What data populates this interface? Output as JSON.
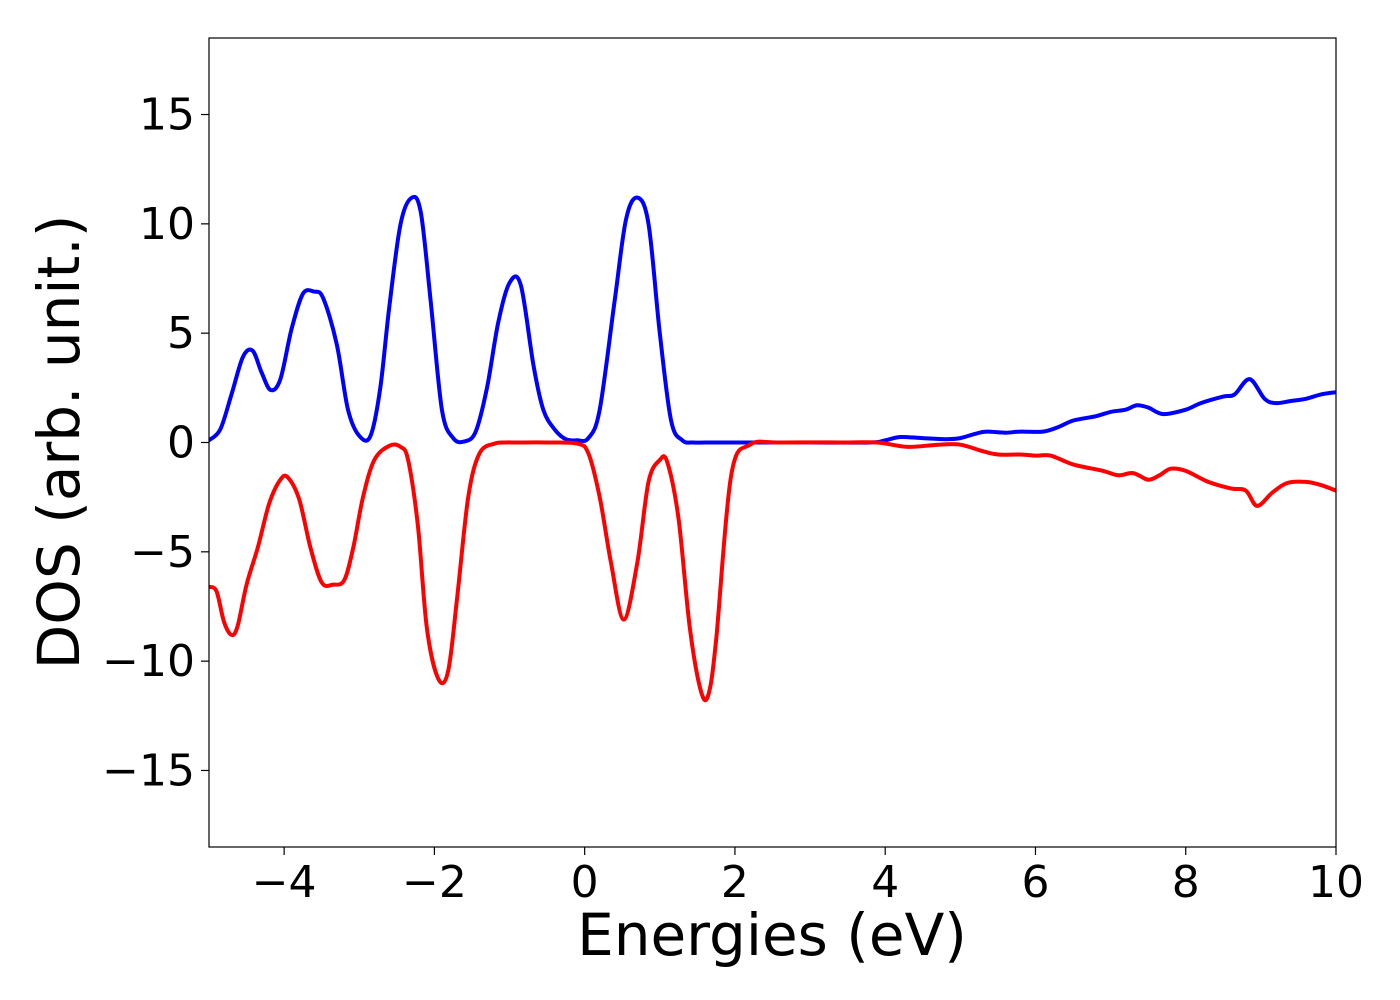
{
  "chart_data": {
    "type": "line",
    "title": "",
    "xlabel": "Energies (eV)",
    "ylabel": "DOS (arb. unit.)",
    "xlim": [
      -5,
      10
    ],
    "ylim": [
      -18.5,
      18.5
    ],
    "xticks": [
      -4,
      -2,
      0,
      2,
      4,
      6,
      8,
      10
    ],
    "xtick_labels": [
      "−4",
      "−2",
      "0",
      "2",
      "4",
      "6",
      "8",
      "10"
    ],
    "yticks": [
      -15,
      -10,
      -5,
      0,
      5,
      10,
      15
    ],
    "ytick_labels": [
      "−15",
      "−10",
      "−5",
      "0",
      "5",
      "10",
      "15"
    ],
    "grid": false,
    "legend": false,
    "series": [
      {
        "color": "#0000ff",
        "x": [
          -5.0,
          -4.85,
          -4.7,
          -4.55,
          -4.42,
          -4.3,
          -4.18,
          -4.05,
          -3.9,
          -3.75,
          -3.6,
          -3.48,
          -3.3,
          -3.15,
          -3.0,
          -2.85,
          -2.72,
          -2.6,
          -2.45,
          -2.3,
          -2.18,
          -2.05,
          -1.9,
          -1.75,
          -1.6,
          -1.45,
          -1.3,
          -1.15,
          -1.0,
          -0.85,
          -0.68,
          -0.55,
          -0.4,
          -0.25,
          -0.1,
          0.05,
          0.2,
          0.4,
          0.55,
          0.7,
          0.85,
          1.0,
          1.15,
          1.3,
          1.45,
          1.6,
          1.8,
          2.2,
          3.0,
          3.8,
          4.0,
          4.2,
          4.5,
          4.8,
          5.0,
          5.2,
          5.35,
          5.6,
          5.8,
          6.1,
          6.3,
          6.5,
          6.8,
          7.0,
          7.2,
          7.35,
          7.5,
          7.7,
          8.0,
          8.2,
          8.5,
          8.65,
          8.85,
          9.05,
          9.2,
          9.4,
          9.6,
          9.8,
          10.0
        ],
        "y": [
          0.1,
          0.6,
          2.2,
          3.9,
          4.2,
          3.2,
          2.4,
          2.9,
          5.2,
          6.8,
          6.9,
          6.6,
          4.5,
          1.5,
          0.3,
          0.3,
          2.5,
          6.2,
          10.0,
          11.2,
          10.5,
          6.5,
          1.5,
          0.2,
          0.05,
          0.5,
          2.5,
          5.5,
          7.3,
          7.2,
          3.5,
          1.5,
          0.6,
          0.15,
          0.1,
          0.2,
          1.5,
          6.5,
          10.2,
          11.2,
          10.0,
          5.0,
          1.0,
          0.1,
          0.0,
          0.0,
          0.0,
          0.0,
          0.0,
          0.0,
          0.1,
          0.25,
          0.2,
          0.15,
          0.2,
          0.4,
          0.5,
          0.45,
          0.5,
          0.5,
          0.7,
          1.0,
          1.2,
          1.4,
          1.5,
          1.7,
          1.6,
          1.3,
          1.5,
          1.8,
          2.1,
          2.2,
          2.9,
          2.0,
          1.8,
          1.9,
          2.0,
          2.2,
          2.3
        ]
      },
      {
        "color": "#ff0000",
        "x": [
          -5.0,
          -4.9,
          -4.8,
          -4.7,
          -4.62,
          -4.5,
          -4.35,
          -4.2,
          -4.05,
          -3.95,
          -3.8,
          -3.65,
          -3.5,
          -3.35,
          -3.2,
          -3.08,
          -2.95,
          -2.8,
          -2.6,
          -2.45,
          -2.35,
          -2.22,
          -2.1,
          -1.95,
          -1.82,
          -1.7,
          -1.55,
          -1.4,
          -1.2,
          -1.05,
          -0.9,
          -0.5,
          -0.1,
          0.05,
          0.2,
          0.35,
          0.52,
          0.7,
          0.85,
          1.0,
          1.1,
          1.25,
          1.4,
          1.55,
          1.65,
          1.75,
          1.95,
          2.2,
          2.6,
          3.5,
          3.9,
          4.3,
          4.7,
          5.0,
          5.3,
          5.5,
          5.8,
          6.0,
          6.2,
          6.5,
          6.9,
          7.1,
          7.3,
          7.5,
          7.65,
          7.8,
          8.0,
          8.3,
          8.6,
          8.8,
          8.95,
          9.15,
          9.35,
          9.6,
          9.8,
          10.0
        ],
        "y": [
          -6.6,
          -6.8,
          -8.2,
          -8.8,
          -8.4,
          -6.5,
          -4.8,
          -2.8,
          -1.7,
          -1.6,
          -2.6,
          -4.8,
          -6.4,
          -6.5,
          -6.3,
          -4.8,
          -2.5,
          -0.8,
          -0.15,
          -0.2,
          -0.8,
          -3.8,
          -8.5,
          -10.8,
          -10.5,
          -7.2,
          -2.5,
          -0.5,
          -0.05,
          0.0,
          0.0,
          0.0,
          -0.05,
          -0.5,
          -2.5,
          -5.5,
          -8.1,
          -5.5,
          -1.8,
          -0.8,
          -0.9,
          -3.5,
          -8.5,
          -11.4,
          -11.5,
          -9.0,
          -1.5,
          -0.1,
          0.0,
          0.0,
          0.0,
          -0.2,
          -0.1,
          -0.1,
          -0.4,
          -0.55,
          -0.55,
          -0.6,
          -0.6,
          -1.0,
          -1.3,
          -1.5,
          -1.4,
          -1.7,
          -1.5,
          -1.2,
          -1.3,
          -1.8,
          -2.1,
          -2.2,
          -2.9,
          -2.3,
          -1.85,
          -1.8,
          -1.95,
          -2.2
        ]
      }
    ]
  }
}
